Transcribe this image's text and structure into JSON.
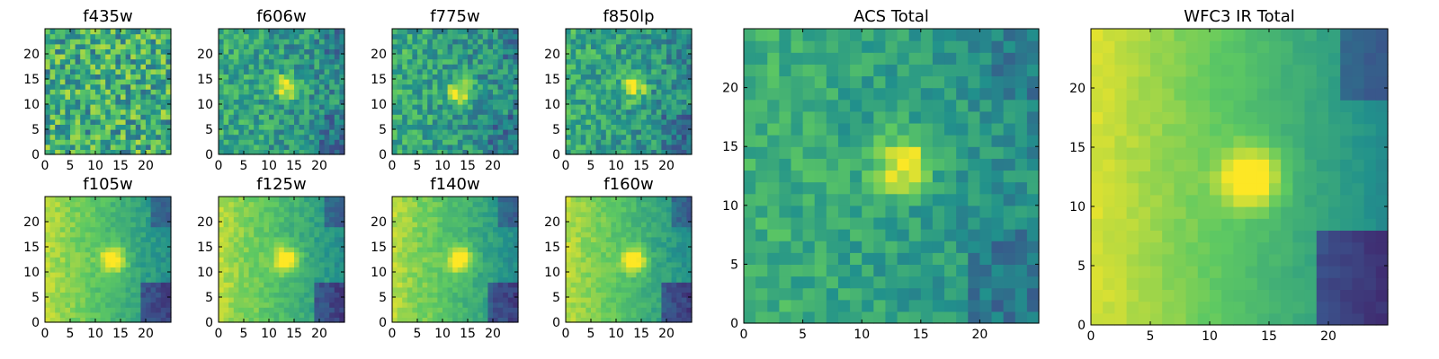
{
  "figure": {
    "colormap": "viridis",
    "colormap_stops": [
      "#440154",
      "#3b528b",
      "#21918c",
      "#5ec962",
      "#fde725"
    ]
  },
  "chart_data": [
    {
      "type": "heatmap",
      "title": "f435w",
      "grid_size": 25,
      "x_ticks": [
        "0",
        "5",
        "10",
        "15",
        "20"
      ],
      "y_ticks": [
        "0",
        "5",
        "10",
        "15",
        "20"
      ],
      "peak": null,
      "noise": 0.55,
      "base": 0.62,
      "edge_darkening": 0.0,
      "seed": 1
    },
    {
      "type": "heatmap",
      "title": "f606w",
      "grid_size": 25,
      "x_ticks": [
        "0",
        "5",
        "10",
        "15",
        "20"
      ],
      "y_ticks": [
        "0",
        "5",
        "10",
        "15",
        "20"
      ],
      "peak": [
        13,
        13
      ],
      "noise": 0.35,
      "base": 0.56,
      "edge_darkening": 0.25,
      "seed": 2
    },
    {
      "type": "heatmap",
      "title": "f775w",
      "grid_size": 25,
      "x_ticks": [
        "0",
        "5",
        "10",
        "15",
        "20"
      ],
      "y_ticks": [
        "0",
        "5",
        "10",
        "15",
        "20"
      ],
      "peak": [
        13,
        12
      ],
      "noise": 0.35,
      "base": 0.56,
      "edge_darkening": 0.25,
      "seed": 3
    },
    {
      "type": "heatmap",
      "title": "f850lp",
      "grid_size": 25,
      "x_ticks": [
        "0",
        "5",
        "10",
        "15",
        "20"
      ],
      "y_ticks": [
        "0",
        "5",
        "10",
        "15",
        "20"
      ],
      "peak": [
        13,
        13
      ],
      "noise": 0.35,
      "base": 0.56,
      "edge_darkening": 0.25,
      "seed": 4
    },
    {
      "type": "heatmap",
      "title": "f105w",
      "grid_size": 25,
      "x_ticks": [
        "0",
        "5",
        "10",
        "15",
        "20"
      ],
      "y_ticks": [
        "0",
        "5",
        "10",
        "15",
        "20"
      ],
      "peak": [
        13,
        12
      ],
      "noise": 0.12,
      "base": 0.72,
      "edge_darkening": 0.75,
      "seed": 5
    },
    {
      "type": "heatmap",
      "title": "f125w",
      "grid_size": 25,
      "x_ticks": [
        "0",
        "5",
        "10",
        "15",
        "20"
      ],
      "y_ticks": [
        "0",
        "5",
        "10",
        "15",
        "20"
      ],
      "peak": [
        13,
        12
      ],
      "noise": 0.12,
      "base": 0.72,
      "edge_darkening": 0.75,
      "seed": 6
    },
    {
      "type": "heatmap",
      "title": "f140w",
      "grid_size": 25,
      "x_ticks": [
        "0",
        "5",
        "10",
        "15",
        "20"
      ],
      "y_ticks": [
        "0",
        "5",
        "10",
        "15",
        "20"
      ],
      "peak": [
        13,
        12
      ],
      "noise": 0.12,
      "base": 0.72,
      "edge_darkening": 0.75,
      "seed": 7
    },
    {
      "type": "heatmap",
      "title": "f160w",
      "grid_size": 25,
      "x_ticks": [
        "0",
        "5",
        "10",
        "15",
        "20"
      ],
      "y_ticks": [
        "0",
        "5",
        "10",
        "15",
        "20"
      ],
      "peak": [
        13,
        12
      ],
      "noise": 0.12,
      "base": 0.72,
      "edge_darkening": 0.75,
      "seed": 8
    },
    {
      "type": "heatmap",
      "title": "ACS Total",
      "grid_size": 25,
      "x_ticks": [
        "0",
        "5",
        "10",
        "15",
        "20"
      ],
      "y_ticks": [
        "0",
        "5",
        "10",
        "15",
        "20"
      ],
      "peak": [
        13,
        13
      ],
      "noise": 0.22,
      "base": 0.58,
      "edge_darkening": 0.3,
      "seed": 9
    },
    {
      "type": "heatmap",
      "title": "WFC3 IR Total",
      "grid_size": 25,
      "x_ticks": [
        "0",
        "5",
        "10",
        "15",
        "20"
      ],
      "y_ticks": [
        "0",
        "5",
        "10",
        "15",
        "20"
      ],
      "peak": [
        13,
        12
      ],
      "noise": 0.05,
      "base": 0.75,
      "edge_darkening": 0.85,
      "seed": 10
    }
  ]
}
